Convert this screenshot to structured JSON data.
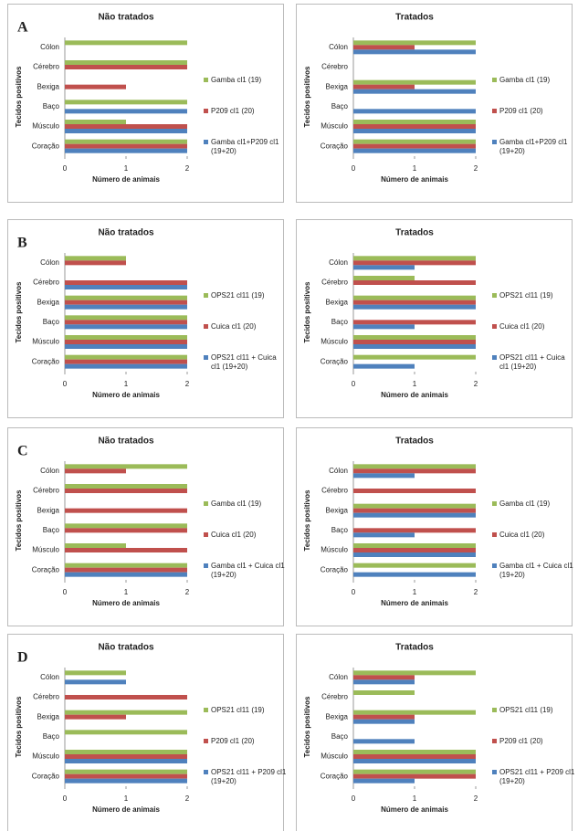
{
  "chart_data": [
    {
      "type": "hbar",
      "label": "A",
      "title": "Não tratados",
      "xlabel": "Número de animais",
      "ylabel": "Tecidos positivos",
      "categories": [
        "Coração",
        "Músculo",
        "Baço",
        "Bexiga",
        "Cérebro",
        "Cólon"
      ],
      "series": [
        {
          "name": "Gamba cl1 (19)",
          "color": "#9bbb59",
          "values": [
            2,
            1,
            2,
            0,
            2,
            2
          ]
        },
        {
          "name": "P209 cl1 (20)",
          "color": "#c0504d",
          "values": [
            2,
            2,
            0,
            1,
            2,
            0
          ]
        },
        {
          "name": "Gamba cl1+P209 cl1 (19+20)",
          "color": "#4f81bd",
          "values": [
            2,
            2,
            2,
            0,
            0,
            0
          ]
        }
      ],
      "xlim": [
        0,
        2
      ],
      "xticks": [
        0,
        1,
        2
      ]
    },
    {
      "type": "hbar",
      "title": "Tratados",
      "xlabel": "Número de animais",
      "ylabel": "Tecidos positivos",
      "categories": [
        "Coração",
        "Músculo",
        "Baço",
        "Bexiga",
        "Cérebro",
        "Cólon"
      ],
      "series": [
        {
          "name": "Gamba cl1 (19)",
          "color": "#9bbb59",
          "values": [
            2,
            2,
            0,
            2,
            0,
            2
          ]
        },
        {
          "name": "P209 cl1 (20)",
          "color": "#c0504d",
          "values": [
            2,
            2,
            0,
            1,
            0,
            1
          ]
        },
        {
          "name": "Gamba cl1+P209 cl1 (19+20)",
          "color": "#4f81bd",
          "values": [
            2,
            2,
            2,
            2,
            0,
            2
          ]
        }
      ],
      "xlim": [
        0,
        2
      ],
      "xticks": [
        0,
        1,
        2
      ]
    },
    {
      "type": "hbar",
      "label": "B",
      "title": "Não tratados",
      "xlabel": "Número de animais",
      "ylabel": "Tecidos positivos",
      "categories": [
        "Coração",
        "Músculo",
        "Baço",
        "Bexiga",
        "Cérebro",
        "Cólon"
      ],
      "series": [
        {
          "name": "OPS21 cl11 (19)",
          "color": "#9bbb59",
          "values": [
            2,
            2,
            2,
            2,
            0,
            1
          ]
        },
        {
          "name": "Cuica cl1 (20)",
          "color": "#c0504d",
          "values": [
            2,
            2,
            2,
            2,
            2,
            1
          ]
        },
        {
          "name": "OPS21 cl11 + Cuica cl1 (19+20)",
          "color": "#4f81bd",
          "values": [
            2,
            2,
            2,
            2,
            2,
            0
          ]
        }
      ],
      "xlim": [
        0,
        2
      ],
      "xticks": [
        0,
        1,
        2
      ]
    },
    {
      "type": "hbar",
      "title": "Tratados",
      "xlabel": "Número de animais",
      "ylabel": "Tecidos positivos",
      "categories": [
        "Coração",
        "Músculo",
        "Baço",
        "Bexiga",
        "Cérebro",
        "Cólon"
      ],
      "series": [
        {
          "name": "OPS21 cl11 (19)",
          "color": "#9bbb59",
          "values": [
            2,
            2,
            0,
            2,
            1,
            2
          ]
        },
        {
          "name": "Cuica cl1 (20)",
          "color": "#c0504d",
          "values": [
            0,
            2,
            2,
            2,
            2,
            2
          ]
        },
        {
          "name": "OPS21 cl11 + Cuica cl1 (19+20)",
          "color": "#4f81bd",
          "values": [
            1,
            2,
            1,
            2,
            0,
            1
          ]
        }
      ],
      "xlim": [
        0,
        2
      ],
      "xticks": [
        0,
        1,
        2
      ]
    },
    {
      "type": "hbar",
      "label": "C",
      "title": "Não tratados",
      "xlabel": "Número de animais",
      "ylabel": "Tecidos positivos",
      "categories": [
        "Coração",
        "Músculo",
        "Baço",
        "Bexiga",
        "Cérebro",
        "Cólon"
      ],
      "series": [
        {
          "name": "Gamba cl1 (19)",
          "color": "#9bbb59",
          "values": [
            2,
            1,
            2,
            0,
            2,
            2
          ]
        },
        {
          "name": "Cuica cl1 (20)",
          "color": "#c0504d",
          "values": [
            2,
            2,
            2,
            2,
            2,
            1
          ]
        },
        {
          "name": "Gamba cl1 + Cuica cl1 (19+20)",
          "color": "#4f81bd",
          "values": [
            2,
            0,
            0,
            0,
            0,
            0
          ]
        }
      ],
      "xlim": [
        0,
        2
      ],
      "xticks": [
        0,
        1,
        2
      ]
    },
    {
      "type": "hbar",
      "title": "Tratados",
      "xlabel": "Número de animais",
      "ylabel": "Tecidos positivos",
      "categories": [
        "Coração",
        "Músculo",
        "Baço",
        "Bexiga",
        "Cérebro",
        "Cólon"
      ],
      "series": [
        {
          "name": "Gamba cl1 (19)",
          "color": "#9bbb59",
          "values": [
            2,
            2,
            0,
            2,
            0,
            2
          ]
        },
        {
          "name": "Cuica cl1 (20)",
          "color": "#c0504d",
          "values": [
            0,
            2,
            2,
            2,
            2,
            2
          ]
        },
        {
          "name": "Gamba cl1 + Cuica cl1 (19+20)",
          "color": "#4f81bd",
          "values": [
            2,
            2,
            1,
            2,
            0,
            1
          ]
        }
      ],
      "xlim": [
        0,
        2
      ],
      "xticks": [
        0,
        1,
        2
      ]
    },
    {
      "type": "hbar",
      "label": "D",
      "title": "Não tratados",
      "xlabel": "Número de animais",
      "ylabel": "Tecidos positivos",
      "categories": [
        "Coração",
        "Músculo",
        "Baço",
        "Bexiga",
        "Cérebro",
        "Cólon"
      ],
      "series": [
        {
          "name": "OPS21 cl11 (19)",
          "color": "#9bbb59",
          "values": [
            2,
            2,
            2,
            2,
            0,
            1
          ]
        },
        {
          "name": "P209 cl1 (20)",
          "color": "#c0504d",
          "values": [
            2,
            2,
            0,
            1,
            2,
            0
          ]
        },
        {
          "name": "OPS21 cl11 + P209 cl1 (19+20)",
          "color": "#4f81bd",
          "values": [
            2,
            2,
            0,
            0,
            0,
            1
          ]
        }
      ],
      "xlim": [
        0,
        2
      ],
      "xticks": [
        0,
        1,
        2
      ]
    },
    {
      "type": "hbar",
      "title": "Tratados",
      "xlabel": "Número de animais",
      "ylabel": "Tecidos positivos",
      "categories": [
        "Coração",
        "Músculo",
        "Baço",
        "Bexiga",
        "Cérebro",
        "Cólon"
      ],
      "series": [
        {
          "name": "OPS21 cl11 (19)",
          "color": "#9bbb59",
          "values": [
            2,
            2,
            0,
            2,
            1,
            2
          ]
        },
        {
          "name": "P209 cl1 (20)",
          "color": "#c0504d",
          "values": [
            2,
            2,
            0,
            1,
            0,
            1
          ]
        },
        {
          "name": "OPS21 cl11 + P209 cl1 (19+20)",
          "color": "#4f81bd",
          "values": [
            1,
            2,
            1,
            1,
            0,
            1
          ]
        }
      ],
      "xlim": [
        0,
        2
      ],
      "xticks": [
        0,
        1,
        2
      ]
    }
  ]
}
